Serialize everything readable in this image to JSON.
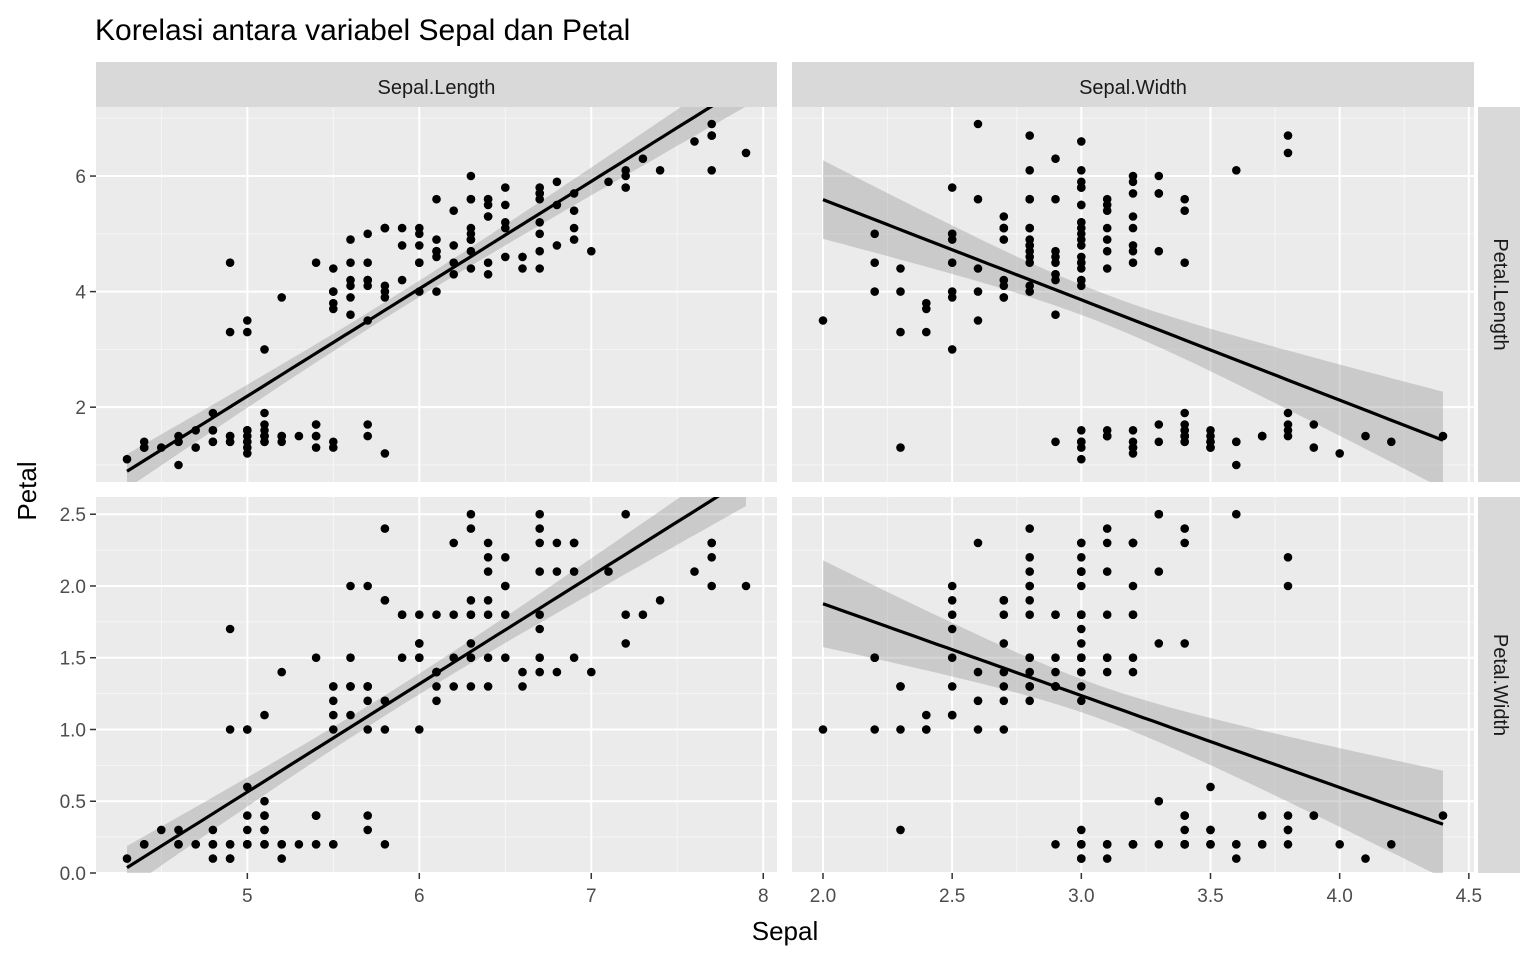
{
  "chart_data": {
    "type": "scatter",
    "title": "Korelasi antara variabel Sepal dan Petal",
    "xlabel": "Sepal",
    "ylabel": "Petal",
    "facet_columns": [
      "Sepal.Length",
      "Sepal.Width"
    ],
    "facet_rows": [
      "Petal.Length",
      "Petal.Width"
    ],
    "grid": true,
    "smooth": "lm with confidence band",
    "colors": {
      "panel": "#ebebeb",
      "strip": "#d9d9d9",
      "grid_major": "#ffffff",
      "point": "#000000",
      "band": "#999999"
    },
    "x_axes": [
      {
        "facet": "Sepal.Length",
        "range": [
          4.12,
          8.08
        ],
        "ticks": [
          5,
          6,
          7,
          8
        ],
        "tick_labels": [
          "5",
          "6",
          "7",
          "8"
        ]
      },
      {
        "facet": "Sepal.Width",
        "range": [
          1.88,
          4.52
        ],
        "ticks": [
          2.0,
          2.5,
          3.0,
          3.5,
          4.0,
          4.5
        ],
        "tick_labels": [
          "2.0",
          "2.5",
          "3.0",
          "3.5",
          "4.0",
          "4.5"
        ]
      }
    ],
    "y_axes": [
      {
        "facet": "Petal.Length",
        "range": [
          0.705,
          7.195
        ],
        "ticks": [
          2,
          4,
          6
        ],
        "tick_labels": [
          "2",
          "4",
          "6"
        ]
      },
      {
        "facet": "Petal.Width",
        "range": [
          0,
          2.62
        ],
        "ticks": [
          0.0,
          0.5,
          1.0,
          1.5,
          2.0,
          2.5
        ],
        "tick_labels": [
          "0.0",
          "0.5",
          "1.0",
          "1.5",
          "2.0",
          "2.5"
        ]
      }
    ],
    "data": {
      "sepal_length": [
        5.1,
        4.9,
        4.7,
        4.6,
        5.0,
        5.4,
        4.6,
        5.0,
        4.4,
        4.9,
        5.4,
        4.8,
        4.8,
        4.3,
        5.8,
        5.7,
        5.4,
        5.1,
        5.7,
        5.1,
        5.4,
        5.1,
        4.6,
        5.1,
        4.8,
        5.0,
        5.0,
        5.2,
        5.2,
        4.7,
        4.8,
        5.4,
        5.2,
        5.5,
        4.9,
        5.0,
        5.5,
        4.9,
        4.4,
        5.1,
        5.0,
        4.5,
        4.4,
        5.0,
        5.1,
        4.8,
        5.1,
        4.6,
        5.3,
        5.0,
        7.0,
        6.4,
        6.9,
        5.5,
        6.5,
        5.7,
        6.3,
        4.9,
        6.6,
        5.2,
        5.0,
        5.9,
        6.0,
        6.1,
        5.6,
        6.7,
        5.6,
        5.8,
        6.2,
        5.6,
        5.9,
        6.1,
        6.3,
        6.1,
        6.4,
        6.6,
        6.8,
        6.7,
        6.0,
        5.7,
        5.5,
        5.5,
        5.8,
        6.0,
        5.4,
        6.0,
        6.7,
        6.3,
        5.6,
        5.5,
        5.5,
        6.1,
        5.8,
        5.0,
        5.6,
        5.7,
        5.7,
        6.2,
        5.1,
        5.7,
        6.3,
        5.8,
        7.1,
        6.3,
        6.5,
        7.6,
        4.9,
        7.3,
        6.7,
        7.2,
        6.5,
        6.4,
        6.8,
        5.7,
        5.8,
        6.4,
        6.5,
        7.7,
        7.7,
        6.0,
        6.9,
        5.6,
        7.7,
        6.3,
        6.7,
        7.2,
        6.2,
        6.1,
        6.4,
        7.2,
        7.4,
        7.9,
        6.4,
        6.3,
        6.1,
        7.7,
        6.3,
        6.4,
        6.0,
        6.9,
        6.7,
        6.9,
        5.8,
        6.8,
        6.7,
        6.7,
        6.3,
        6.5,
        6.2,
        5.9
      ],
      "sepal_width": [
        3.5,
        3.0,
        3.2,
        3.1,
        3.6,
        3.9,
        3.4,
        3.4,
        2.9,
        3.1,
        3.7,
        3.4,
        3.0,
        3.0,
        4.0,
        4.4,
        3.9,
        3.5,
        3.8,
        3.8,
        3.4,
        3.7,
        3.6,
        3.3,
        3.4,
        3.0,
        3.4,
        3.5,
        3.4,
        3.2,
        3.1,
        3.4,
        4.1,
        4.2,
        3.1,
        3.2,
        3.5,
        3.6,
        3.0,
        3.4,
        3.5,
        2.3,
        3.2,
        3.5,
        3.8,
        3.0,
        3.8,
        3.2,
        3.7,
        3.3,
        3.2,
        3.2,
        3.1,
        2.3,
        2.8,
        2.8,
        3.3,
        2.4,
        2.9,
        2.7,
        2.0,
        3.0,
        2.2,
        2.9,
        2.9,
        3.1,
        3.0,
        2.7,
        2.2,
        2.5,
        3.2,
        2.8,
        2.5,
        2.8,
        2.9,
        3.0,
        2.8,
        3.0,
        2.9,
        2.6,
        2.4,
        2.4,
        2.7,
        2.7,
        3.0,
        3.4,
        3.1,
        2.3,
        3.0,
        2.5,
        2.6,
        3.0,
        2.6,
        2.3,
        2.7,
        3.0,
        2.9,
        2.9,
        2.5,
        2.8,
        3.3,
        2.7,
        3.0,
        2.9,
        3.0,
        3.0,
        2.5,
        2.9,
        2.5,
        3.6,
        3.2,
        2.7,
        3.0,
        2.5,
        2.8,
        3.2,
        3.0,
        3.8,
        2.6,
        2.2,
        3.2,
        2.8,
        2.8,
        2.7,
        3.3,
        3.2,
        2.8,
        3.0,
        2.8,
        3.0,
        2.8,
        3.8,
        2.8,
        2.8,
        2.6,
        3.0,
        3.4,
        3.1,
        3.0,
        3.1,
        3.1,
        3.1,
        2.7,
        3.2,
        3.3,
        3.0,
        2.5,
        3.0,
        3.4,
        3.0
      ],
      "petal_length": [
        1.4,
        1.4,
        1.3,
        1.5,
        1.4,
        1.7,
        1.4,
        1.5,
        1.4,
        1.5,
        1.5,
        1.6,
        1.4,
        1.1,
        1.2,
        1.5,
        1.3,
        1.4,
        1.7,
        1.5,
        1.7,
        1.5,
        1.0,
        1.7,
        1.9,
        1.6,
        1.6,
        1.5,
        1.4,
        1.6,
        1.6,
        1.5,
        1.5,
        1.4,
        1.5,
        1.2,
        1.3,
        1.4,
        1.3,
        1.5,
        1.3,
        1.3,
        1.3,
        1.6,
        1.9,
        1.4,
        1.6,
        1.4,
        1.5,
        1.4,
        4.7,
        4.5,
        4.9,
        4.0,
        4.6,
        4.5,
        4.7,
        3.3,
        4.6,
        3.9,
        3.5,
        4.2,
        4.0,
        4.7,
        3.6,
        4.4,
        4.5,
        4.1,
        4.5,
        3.9,
        4.8,
        4.0,
        4.9,
        4.7,
        4.3,
        4.4,
        4.8,
        5.0,
        4.5,
        3.5,
        3.8,
        3.7,
        3.9,
        5.1,
        4.5,
        4.5,
        4.7,
        4.4,
        4.1,
        4.0,
        4.4,
        4.6,
        4.0,
        3.3,
        4.2,
        4.2,
        4.2,
        4.3,
        3.0,
        4.1,
        6.0,
        5.1,
        5.9,
        5.6,
        5.8,
        6.6,
        4.5,
        6.3,
        5.8,
        6.1,
        5.1,
        5.3,
        5.5,
        5.0,
        5.1,
        5.3,
        5.5,
        6.7,
        6.9,
        5.0,
        5.7,
        4.9,
        6.7,
        4.9,
        5.7,
        6.0,
        4.8,
        4.9,
        5.6,
        5.8,
        6.1,
        6.4,
        5.6,
        5.1,
        5.6,
        6.1,
        5.6,
        5.5,
        4.8,
        5.4,
        5.6,
        5.1,
        5.1,
        5.9,
        5.7,
        5.2,
        5.0,
        5.2,
        5.4,
        5.1
      ],
      "petal_width": [
        0.2,
        0.2,
        0.2,
        0.2,
        0.2,
        0.4,
        0.3,
        0.2,
        0.2,
        0.1,
        0.2,
        0.2,
        0.1,
        0.1,
        0.2,
        0.4,
        0.4,
        0.3,
        0.3,
        0.3,
        0.2,
        0.4,
        0.2,
        0.5,
        0.2,
        0.2,
        0.4,
        0.2,
        0.2,
        0.2,
        0.2,
        0.4,
        0.1,
        0.2,
        0.2,
        0.2,
        0.2,
        0.1,
        0.2,
        0.2,
        0.3,
        0.3,
        0.2,
        0.6,
        0.4,
        0.3,
        0.2,
        0.2,
        0.2,
        0.2,
        1.4,
        1.5,
        1.5,
        1.3,
        1.5,
        1.3,
        1.6,
        1.0,
        1.3,
        1.4,
        1.0,
        1.5,
        1.0,
        1.4,
        1.3,
        1.4,
        1.5,
        1.0,
        1.5,
        1.1,
        1.8,
        1.3,
        1.5,
        1.2,
        1.3,
        1.4,
        1.4,
        1.7,
        1.5,
        1.0,
        1.1,
        1.0,
        1.2,
        1.6,
        1.5,
        1.6,
        1.5,
        1.3,
        1.3,
        1.3,
        1.2,
        1.4,
        1.2,
        1.0,
        1.3,
        1.2,
        1.3,
        1.3,
        1.1,
        1.3,
        2.5,
        1.9,
        2.1,
        1.8,
        2.2,
        2.1,
        1.7,
        1.8,
        1.8,
        2.5,
        2.0,
        1.9,
        2.1,
        2.0,
        2.4,
        2.3,
        1.8,
        2.2,
        2.3,
        1.5,
        2.3,
        2.0,
        2.0,
        1.8,
        2.1,
        1.8,
        1.8,
        1.8,
        2.1,
        1.6,
        1.9,
        2.0,
        2.2,
        1.5,
        1.4,
        2.3,
        2.4,
        1.8,
        1.8,
        2.1,
        2.4,
        2.3,
        1.9,
        2.3,
        2.5,
        2.3,
        1.9,
        2.0,
        2.3,
        1.8
      ]
    }
  }
}
